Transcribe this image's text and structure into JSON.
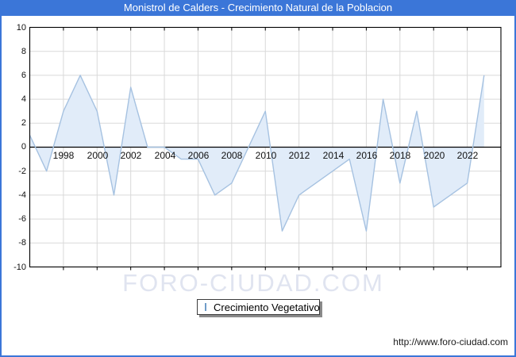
{
  "title_bar": {
    "text": "Monistrol de Calders - Crecimiento Natural de la Poblacion"
  },
  "chart_data": {
    "type": "area",
    "title": "Monistrol de Calders - Crecimiento Natural de la Poblacion",
    "series": [
      {
        "name": "Crecimiento Vegetativo",
        "x": [
          1996,
          1997,
          1998,
          1999,
          2000,
          2001,
          2002,
          2003,
          2004,
          2005,
          2006,
          2007,
          2008,
          2009,
          2010,
          2011,
          2012,
          2013,
          2014,
          2015,
          2016,
          2017,
          2018,
          2019,
          2020,
          2021,
          2022,
          2023
        ],
        "values": [
          1,
          -2,
          3,
          6,
          3,
          -4,
          5,
          0,
          0,
          -1,
          -1,
          -4,
          -3,
          0,
          3,
          -7,
          -4,
          -3,
          -2,
          -1,
          -7,
          4,
          -3,
          3,
          -5,
          -4,
          -3,
          6
        ]
      }
    ],
    "xlim": [
      1996,
      2024
    ],
    "ylim": [
      -10,
      10
    ],
    "yticks": [
      "10",
      "8",
      "6",
      "4",
      "2",
      "0",
      "-2",
      "-4",
      "-6",
      "-8",
      "-10"
    ],
    "xticks": [
      "1998",
      "2000",
      "2002",
      "2004",
      "2006",
      "2008",
      "2010",
      "2012",
      "2014",
      "2016",
      "2018",
      "2020",
      "2022"
    ],
    "grid": true,
    "legend_position": "bottom-center",
    "colors": {
      "accent_blue": "#3b76d8",
      "line": "#a6c2e1",
      "fill": "#e1ecf9",
      "grid": "#d9d9d9",
      "axis": "#000000"
    }
  },
  "legend": {
    "label": "Crecimiento Vegetativo"
  },
  "watermark": {
    "text": "FORO-CIUDAD.COM"
  },
  "footer": {
    "url": "http://www.foro-ciudad.com"
  }
}
